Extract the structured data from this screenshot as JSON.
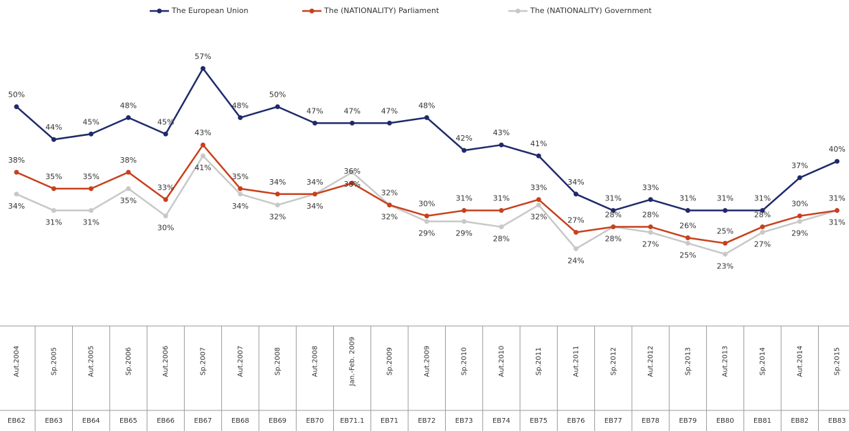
{
  "chart_data": {
    "type": "line",
    "categories": [
      "Aut.2004",
      "Sp.2005",
      "Aut.2005",
      "Sp.2006",
      "Aut.2006",
      "Sp.2007",
      "Aut.2007",
      "Sp.2008",
      "Aut.2008",
      "Jan.-Feb. 2009",
      "Sp.2009",
      "Aut.2009",
      "Sp.2010",
      "Aut.2010",
      "Sp.2011",
      "Aut.2011",
      "Sp.2012",
      "Aut.2012",
      "Sp.2013",
      "Aut.2013",
      "Sp.2014",
      "Aut.2014",
      "Sp.2015"
    ],
    "waves": [
      "EB62",
      "EB63",
      "EB64",
      "EB65",
      "EB66",
      "EB67",
      "EB68",
      "EB69",
      "EB70",
      "EB71.1",
      "EB71",
      "EB72",
      "EB73",
      "EB74",
      "EB75",
      "EB76",
      "EB77",
      "EB78",
      "EB79",
      "EB80",
      "EB81",
      "EB82",
      "EB83"
    ],
    "ylim": [
      15,
      62
    ],
    "series": [
      {
        "name": "The European Union",
        "color": "#1f2a6b",
        "values": [
          50,
          44,
          45,
          48,
          45,
          57,
          48,
          50,
          47,
          47,
          47,
          48,
          42,
          43,
          41,
          34,
          31,
          33,
          31,
          31,
          31,
          37,
          40
        ],
        "value_labels": [
          "50%",
          "44%",
          "45%",
          "48%",
          "45%",
          "57%",
          "48%",
          "50%",
          "47%",
          "47%",
          "47%",
          "48%",
          "42%",
          "43%",
          "41%",
          "34%",
          "31%",
          "33%",
          "31%",
          "31%",
          "31%",
          "37%",
          "40%"
        ]
      },
      {
        "name": "The (NATIONALITY) Parliament",
        "color": "#c8401c",
        "values": [
          38,
          35,
          35,
          38,
          33,
          43,
          35,
          34,
          34,
          36,
          32,
          30,
          31,
          31,
          33,
          27,
          28,
          28,
          26,
          25,
          28,
          30,
          31
        ],
        "value_labels": [
          "38%",
          "35%",
          "35%",
          "38%",
          "33%",
          "43%",
          "35%",
          "34%",
          "34%",
          "36%",
          "32%",
          "30%",
          "31%",
          "31%",
          "33%",
          "27%",
          "28%",
          "28%",
          "26%",
          "25%",
          "28%",
          "30%",
          "31%"
        ]
      },
      {
        "name": "The (NATIONALITY) Government",
        "color": "#c8c8c8",
        "values": [
          34,
          31,
          31,
          35,
          30,
          41,
          34,
          32,
          34,
          38,
          32,
          29,
          29,
          28,
          32,
          24,
          28,
          27,
          25,
          23,
          27,
          29,
          31
        ],
        "value_labels": [
          "34%",
          "31%",
          "31%",
          "35%",
          "30%",
          "41%",
          "34%",
          "32%",
          "34%",
          "38%",
          "32%",
          "29%",
          "29%",
          "28%",
          "32%",
          "24%",
          "28%",
          "27%",
          "25%",
          "23%",
          "27%",
          "29%",
          "31%"
        ]
      }
    ]
  }
}
